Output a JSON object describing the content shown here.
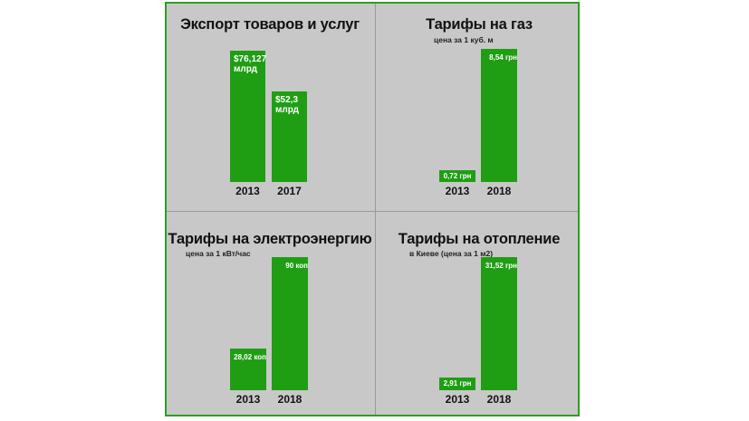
{
  "colors": {
    "bar": "#1f9e14",
    "border": "#2e9e1f",
    "background": "#c8c8c8"
  },
  "chart_data": [
    {
      "type": "bar",
      "title": "Экспорт товаров и услуг",
      "subtitle": "",
      "categories": [
        "2013",
        "2017"
      ],
      "values": [
        76.127,
        52.3
      ],
      "data_labels": [
        "$76,127 млрд",
        "$52,3 млрд"
      ],
      "label_lines": [
        [
          "$76,127",
          "млрд"
        ],
        [
          "$52,3",
          "млрд"
        ]
      ]
    },
    {
      "type": "bar",
      "title": "Тарифы на газ",
      "subtitle": "цена за 1 куб. м",
      "categories": [
        "2013",
        "2018"
      ],
      "values": [
        0.72,
        8.54
      ],
      "data_labels": [
        "0,72 грн",
        "8,54 грн"
      ],
      "label_lines": [
        [
          "0,72 грн"
        ],
        [
          "8,54 грн"
        ]
      ]
    },
    {
      "type": "bar",
      "title": "Тарифы на электроэнергию",
      "subtitle": "цена за 1 кВт/час",
      "categories": [
        "2013",
        "2018"
      ],
      "values": [
        28.02,
        90
      ],
      "data_labels": [
        "28,02 коп",
        "90 коп"
      ],
      "label_lines": [
        [
          "28,02 коп"
        ],
        [
          "90 коп"
        ]
      ]
    },
    {
      "type": "bar",
      "title": "Тарифы на отопление",
      "subtitle": "в Киеве (цена за 1 м2)",
      "categories": [
        "2013",
        "2018"
      ],
      "values": [
        2.91,
        31.52
      ],
      "data_labels": [
        "2,91 грн",
        "31,52 грн"
      ],
      "label_lines": [
        [
          "2,91 грн"
        ],
        [
          "31,52 грн"
        ]
      ]
    }
  ]
}
